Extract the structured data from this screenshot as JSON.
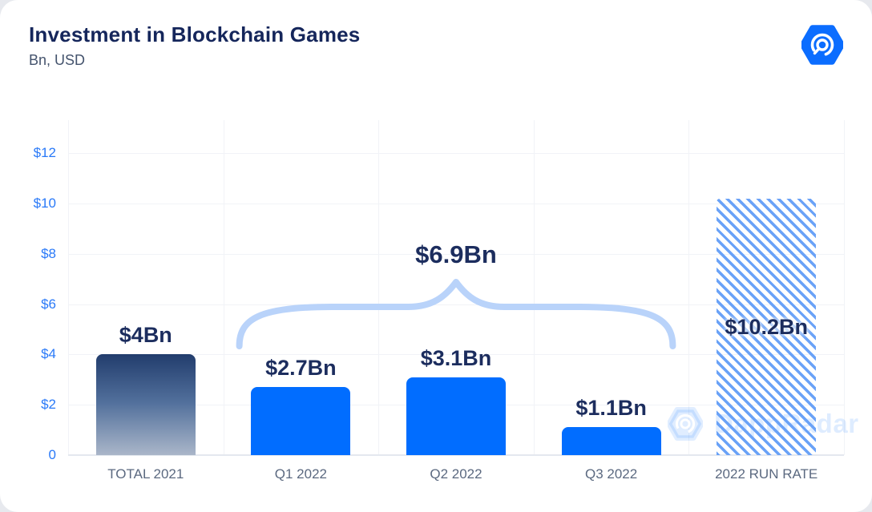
{
  "header": {
    "title": "Investment in Blockchain Games",
    "subtitle": "Bn, USD"
  },
  "watermark": {
    "text": "DappRadar"
  },
  "chart_data": {
    "type": "bar",
    "title": "Investment in Blockchain Games",
    "units": "Bn, USD",
    "categories": [
      "TOTAL 2021",
      "Q1 2022",
      "Q2 2022",
      "Q3 2022",
      "2022 RUN RATE"
    ],
    "values": [
      4,
      2.7,
      3.1,
      1.1,
      10.2
    ],
    "bar_labels": [
      "$4Bn",
      "$2.7Bn",
      "$3.1Bn",
      "$1.1Bn",
      "$10.2Bn"
    ],
    "bar_styles": [
      "gradient",
      "solid",
      "solid",
      "solid",
      "hatched"
    ],
    "label_positions": [
      "above",
      "above",
      "above",
      "above",
      "inside"
    ],
    "y_ticks": [
      "$12",
      "$10",
      "$8",
      "$6",
      "$4",
      "$2",
      "0"
    ],
    "y_tick_values": [
      12,
      10,
      8,
      6,
      4,
      2,
      0
    ],
    "ylim": [
      0,
      12
    ],
    "grid": "horizontal-and-vertical",
    "annotation": {
      "label": "$6.9Bn",
      "span_from": "Q1 2022",
      "span_to": "Q3 2022",
      "total_of": [
        2.7,
        3.1,
        1.1
      ]
    },
    "colors": {
      "bar_blue": "#016dff",
      "gradient_top": "#223d6d",
      "gradient_bottom": "#aab6c9",
      "hatch_stripe": "#6aa2f7",
      "brace": "#b9d3fa",
      "value_label": "#1c2d5e",
      "y_tick_label": "#2979f8",
      "x_tick_label": "#5b6980",
      "gridline": "#f1f3f7",
      "title": "#15265b",
      "logo_blue": "#0b6dff"
    }
  }
}
